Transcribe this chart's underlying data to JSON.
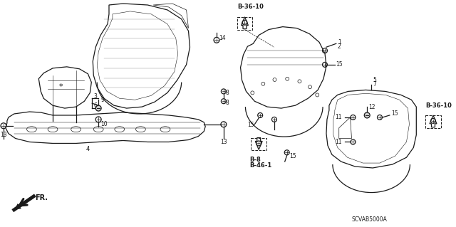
{
  "bg_color": "#ffffff",
  "line_color": "#1a1a1a",
  "fig_width": 6.4,
  "fig_height": 3.19,
  "dpi": 100,
  "diagram_code": "SCVAB5000A",
  "labels": {
    "B_36_10_top": "B-36-10",
    "B_36_10_right": "B-36-10",
    "B_8_B_46_1_line1": "B-8",
    "B_8_B_46_1_line2": "B-46-1",
    "FR": "FR.",
    "num1": "1",
    "num2": "2",
    "num3": "3",
    "num4": "4",
    "num5": "5",
    "num6": "6",
    "num7": "7",
    "num8a": "8",
    "num8b": "8",
    "num9": "9",
    "num10": "10",
    "num11a": "11",
    "num11b": "11",
    "num12": "12",
    "num13a": "13",
    "num13b": "13",
    "num14": "14",
    "num15a": "15",
    "num15b": "15",
    "num15c": "15",
    "num15d": "15",
    "asterisk": "*"
  }
}
